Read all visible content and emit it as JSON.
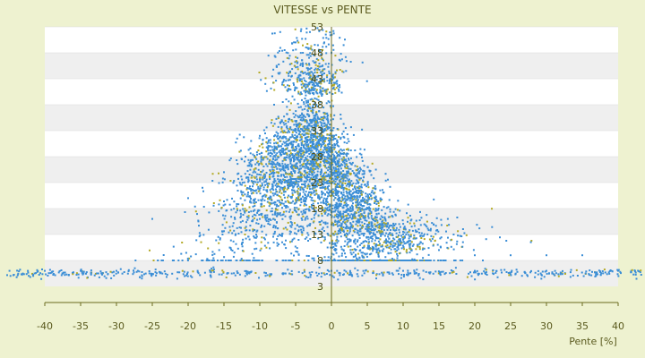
{
  "chart_data": {
    "type": "scatter",
    "title": "VITESSE vs PENTE",
    "xlabel": "Pente [%]",
    "ylabel": "",
    "xlim": [
      -40,
      40
    ],
    "ylim": [
      3,
      53
    ],
    "x_ticks": [
      "-40",
      "-35",
      "-30",
      "-25",
      "-20",
      "-15",
      "-10",
      "-5",
      "0",
      "5",
      "10",
      "15",
      "20",
      "25",
      "30",
      "35",
      "40"
    ],
    "y_ticks": [
      "53",
      "48",
      "43",
      "38",
      "33",
      "28",
      "23",
      "18",
      "13",
      "8",
      "3"
    ],
    "grid": "horizontal bands",
    "point_colors": {
      "primary": "#3b8ed6",
      "secondary": "#b3aa26"
    },
    "band_colors": [
      "#ffffff",
      "#efefef"
    ],
    "axis_color": "#6b6b1e",
    "series": [
      {
        "distribution": "dense cloud peaking near x=-3, speeds 8-52; plus flat band near y=6",
        "sample_points": [
          [
            -5,
            50
          ],
          [
            -3,
            52
          ],
          [
            -1,
            50
          ],
          [
            -4,
            46
          ],
          [
            -6,
            44
          ],
          [
            -2,
            42
          ],
          [
            -8,
            38
          ],
          [
            -5,
            36
          ],
          [
            -3,
            35
          ],
          [
            -1,
            33
          ],
          [
            -10,
            32
          ],
          [
            -7,
            30
          ],
          [
            -12,
            28
          ],
          [
            -4,
            28
          ],
          [
            -2,
            26
          ],
          [
            0,
            25
          ],
          [
            2,
            24
          ],
          [
            -15,
            25
          ],
          [
            -18,
            22
          ],
          [
            -6,
            22
          ],
          [
            1,
            20
          ],
          [
            3,
            19
          ],
          [
            5,
            18
          ],
          [
            -20,
            20
          ],
          [
            -25,
            16
          ],
          [
            -10,
            16
          ],
          [
            4,
            14
          ],
          [
            7,
            14
          ],
          [
            10,
            12
          ],
          [
            12,
            11
          ],
          [
            15,
            10
          ],
          [
            20,
            9
          ],
          [
            25,
            9
          ],
          [
            30,
            9
          ],
          [
            35,
            9
          ],
          [
            -30,
            6
          ],
          [
            -35,
            6
          ],
          [
            -40,
            6
          ],
          [
            0,
            6
          ],
          [
            10,
            6
          ],
          [
            20,
            6
          ],
          [
            30,
            6
          ],
          [
            40,
            6
          ]
        ]
      }
    ]
  }
}
